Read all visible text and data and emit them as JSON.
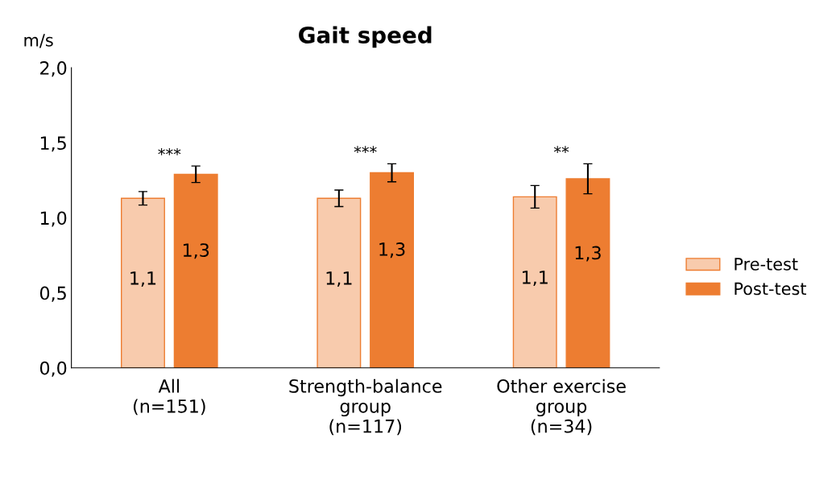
{
  "chart_data": {
    "type": "bar",
    "title": "Gait speed",
    "ylabel": "m/s",
    "categories": [
      "All\n(n=151)",
      "Strength-balance\ngroup\n(n=117)",
      "Other exercise\ngroup\n(n=34)"
    ],
    "series": [
      {
        "name": "Pre-test",
        "color": "#f8cbad",
        "values": [
          1.13,
          1.13,
          1.14
        ],
        "errors": [
          0.045,
          0.055,
          0.075
        ],
        "value_labels": [
          "1,1",
          "1,1",
          "1,1"
        ]
      },
      {
        "name": "Post-test",
        "color": "#ed7d31",
        "values": [
          1.29,
          1.3,
          1.26
        ],
        "errors": [
          0.055,
          0.06,
          0.1
        ],
        "value_labels": [
          "1,3",
          "1,3",
          "1,3"
        ]
      }
    ],
    "annotations": [
      "***",
      "***",
      "**"
    ],
    "ylim": [
      0,
      2
    ],
    "yticks": [
      {
        "value": 0,
        "label": "0,0"
      },
      {
        "value": 0.5,
        "label": "0,5"
      },
      {
        "value": 1,
        "label": "1,0"
      },
      {
        "value": 1.5,
        "label": "1,5"
      },
      {
        "value": 2,
        "label": "2,0"
      }
    ],
    "grid": false,
    "legend": "right"
  }
}
